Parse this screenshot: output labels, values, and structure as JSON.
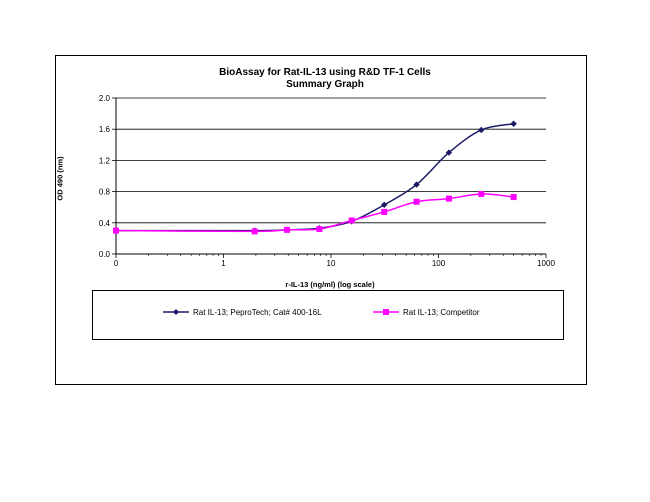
{
  "chart_data": {
    "type": "line",
    "title": "BioAssay for Rat-IL-13 using R&D TF-1 Cells",
    "subtitle": "Summary Graph",
    "xlabel": "r-IL-13 (ng/ml) (log scale)",
    "ylabel": "OD 490 (nm)",
    "x_scale": "log",
    "x_ticks": [
      "0",
      "1",
      "10",
      "100",
      "1000"
    ],
    "y_ticks": [
      "0.0",
      "0.4",
      "0.8",
      "1.2",
      "1.6",
      "2.0"
    ],
    "ylim": [
      0,
      2.0
    ],
    "grid": true,
    "legend_placement": "bottom",
    "series": [
      {
        "name": "Rat IL-13; PeproTech; Cat# 400-16L",
        "color": "#1a1a66",
        "marker": "diamond",
        "x": [
          0.1,
          1.95,
          3.9,
          7.8,
          15.6,
          31.25,
          62.5,
          125,
          250,
          500
        ],
        "y": [
          0.3,
          0.3,
          0.31,
          0.33,
          0.42,
          0.63,
          0.89,
          1.3,
          1.59,
          1.67
        ]
      },
      {
        "name": "Rat IL-13; Competitor",
        "color": "#ff00ff",
        "marker": "square",
        "x": [
          0.1,
          1.95,
          3.9,
          7.8,
          15.6,
          31.25,
          62.5,
          125,
          250,
          500
        ],
        "y": [
          0.3,
          0.29,
          0.31,
          0.32,
          0.43,
          0.54,
          0.67,
          0.71,
          0.77,
          0.73
        ]
      }
    ]
  }
}
